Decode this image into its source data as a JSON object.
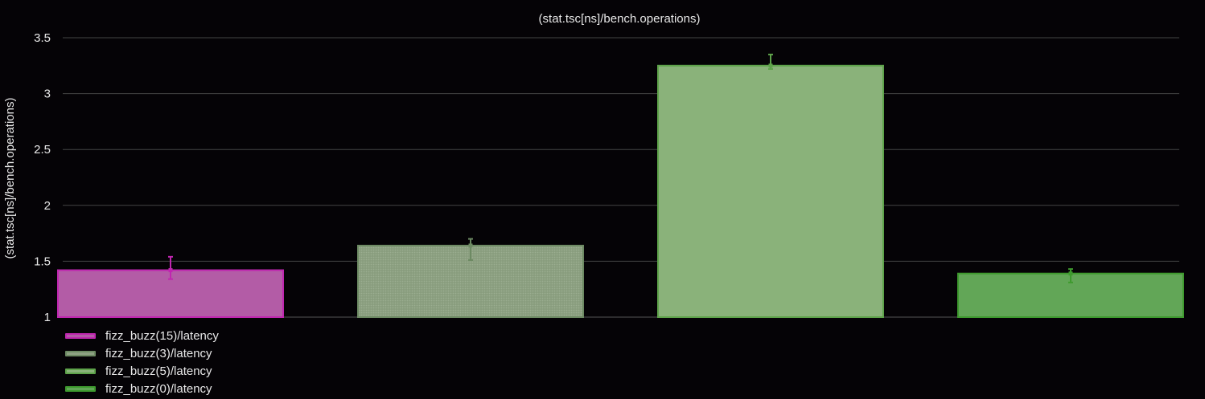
{
  "chart_data": {
    "type": "bar",
    "title": "(stat.tsc[ns]/bench.operations)",
    "ylabel": "(stat.tsc[ns]/bench.operations)",
    "xlabel": "",
    "ylim": [
      1,
      3.5
    ],
    "yticks": [
      1,
      1.5,
      2,
      2.5,
      3,
      3.5
    ],
    "ytick_labels": [
      "1",
      "1.5",
      "2",
      "2.5",
      "3",
      "3.5"
    ],
    "grid": true,
    "legend_position": "bottom-left",
    "series": [
      {
        "name": "fizz_buzz(15)/latency",
        "value": 1.42,
        "err_low": 1.34,
        "err_high": 1.54,
        "fill": "#b35ca6",
        "stroke": "#c026b0"
      },
      {
        "name": "fizz_buzz(3)/latency",
        "value": 1.64,
        "err_low": 1.51,
        "err_high": 1.7,
        "fill": "#8ea283",
        "stroke": "#6d8a63",
        "pattern": "dotted"
      },
      {
        "name": "fizz_buzz(5)/latency",
        "value": 3.25,
        "err_low": 3.22,
        "err_high": 3.35,
        "fill": "#8ab27a",
        "stroke": "#5ea34a"
      },
      {
        "name": "fizz_buzz(0)/latency",
        "value": 1.39,
        "err_low": 1.31,
        "err_high": 1.43,
        "fill": "#62a657",
        "stroke": "#3e9a2e"
      }
    ]
  }
}
